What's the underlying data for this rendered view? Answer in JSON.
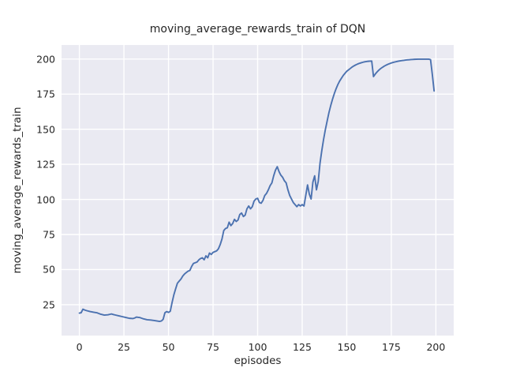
{
  "figure": {
    "background": "#ffffff"
  },
  "chart_data": {
    "type": "line",
    "title": "moving_average_rewards_train of DQN",
    "xlabel": "episodes",
    "ylabel": "moving_average_rewards_train",
    "x_ticks": [
      0,
      25,
      50,
      75,
      100,
      125,
      150,
      175,
      200
    ],
    "y_ticks": [
      25,
      50,
      75,
      100,
      125,
      150,
      175,
      200
    ],
    "xlim": [
      -10,
      210
    ],
    "ylim": [
      3,
      210
    ],
    "grid": true,
    "legend": "none",
    "style": {
      "axes_background": "#eaeaf2",
      "grid_color": "#ffffff",
      "grid_width": 1.4,
      "line_color": "#4c72b0",
      "line_width": 1.9,
      "text_color": "#262626"
    },
    "series": [
      {
        "name": "moving_average_rewards_train",
        "points": [
          [
            0,
            19.0
          ],
          [
            1,
            19.3
          ],
          [
            2,
            21.8
          ],
          [
            3,
            21.2
          ],
          [
            4,
            20.8
          ],
          [
            6,
            20.1
          ],
          [
            8,
            19.6
          ],
          [
            10,
            19.2
          ],
          [
            12,
            18.2
          ],
          [
            14,
            17.6
          ],
          [
            16,
            17.8
          ],
          [
            18,
            18.4
          ],
          [
            19,
            18.0
          ],
          [
            20,
            17.7
          ],
          [
            22,
            17.1
          ],
          [
            24,
            16.5
          ],
          [
            26,
            15.9
          ],
          [
            28,
            15.3
          ],
          [
            30,
            15.1
          ],
          [
            31,
            15.5
          ],
          [
            32,
            16.2
          ],
          [
            33,
            16.0
          ],
          [
            34,
            15.8
          ],
          [
            36,
            14.9
          ],
          [
            38,
            14.3
          ],
          [
            40,
            14.1
          ],
          [
            42,
            13.7
          ],
          [
            44,
            13.3
          ],
          [
            45,
            13.1
          ],
          [
            46,
            13.4
          ],
          [
            47,
            14.6
          ],
          [
            48,
            19.3
          ],
          [
            49,
            20.1
          ],
          [
            50,
            19.5
          ],
          [
            51,
            20.3
          ],
          [
            52,
            26.5
          ],
          [
            53,
            32.0
          ],
          [
            54,
            36.3
          ],
          [
            55,
            40.3
          ],
          [
            56,
            41.8
          ],
          [
            57,
            43.3
          ],
          [
            58,
            45.4
          ],
          [
            59,
            46.9
          ],
          [
            60,
            47.9
          ],
          [
            61,
            48.9
          ],
          [
            62,
            49.4
          ],
          [
            63,
            52.3
          ],
          [
            64,
            54.4
          ],
          [
            65,
            54.9
          ],
          [
            66,
            55.4
          ],
          [
            67,
            56.9
          ],
          [
            68,
            57.9
          ],
          [
            69,
            58.4
          ],
          [
            70,
            57.0
          ],
          [
            71,
            59.8
          ],
          [
            72,
            58.4
          ],
          [
            73,
            61.8
          ],
          [
            74,
            60.8
          ],
          [
            75,
            62.3
          ],
          [
            76,
            62.8
          ],
          [
            77,
            63.3
          ],
          [
            78,
            64.8
          ],
          [
            79,
            67.8
          ],
          [
            80,
            71.8
          ],
          [
            81,
            77.8
          ],
          [
            82,
            79.3
          ],
          [
            83,
            79.8
          ],
          [
            84,
            83.8
          ],
          [
            85,
            81.3
          ],
          [
            86,
            82.8
          ],
          [
            87,
            85.8
          ],
          [
            88,
            84.3
          ],
          [
            89,
            85.3
          ],
          [
            90,
            89.3
          ],
          [
            91,
            90.3
          ],
          [
            92,
            87.8
          ],
          [
            93,
            88.8
          ],
          [
            94,
            93.3
          ],
          [
            95,
            95.3
          ],
          [
            96,
            93.3
          ],
          [
            97,
            94.8
          ],
          [
            98,
            98.8
          ],
          [
            99,
            100.3
          ],
          [
            100,
            100.8
          ],
          [
            101,
            97.8
          ],
          [
            102,
            97.3
          ],
          [
            103,
            99.3
          ],
          [
            104,
            102.8
          ],
          [
            105,
            104.3
          ],
          [
            106,
            106.8
          ],
          [
            107,
            109.8
          ],
          [
            108,
            111.8
          ],
          [
            109,
            116.8
          ],
          [
            110,
            120.8
          ],
          [
            111,
            123.3
          ],
          [
            112,
            119.8
          ],
          [
            113,
            117.3
          ],
          [
            114,
            115.8
          ],
          [
            115,
            113.3
          ],
          [
            116,
            111.8
          ],
          [
            117,
            106.8
          ],
          [
            118,
            102.8
          ],
          [
            119,
            100.3
          ],
          [
            120,
            97.8
          ],
          [
            121,
            96.3
          ],
          [
            122,
            94.8
          ],
          [
            123,
            96.3
          ],
          [
            124,
            95.3
          ],
          [
            125,
            96.3
          ],
          [
            126,
            95.3
          ],
          [
            127,
            102.8
          ],
          [
            128,
            110.3
          ],
          [
            129,
            103.8
          ],
          [
            130,
            100.3
          ],
          [
            131,
            112.3
          ],
          [
            132,
            116.8
          ],
          [
            133,
            106.8
          ],
          [
            134,
            112.8
          ],
          [
            135,
            125.8
          ],
          [
            136,
            134.8
          ],
          [
            137,
            142.8
          ],
          [
            138,
            149.8
          ],
          [
            139,
            155.8
          ],
          [
            140,
            161.8
          ],
          [
            141,
            166.8
          ],
          [
            142,
            171.3
          ],
          [
            143,
            175.3
          ],
          [
            144,
            178.8
          ],
          [
            145,
            181.8
          ],
          [
            146,
            184.3
          ],
          [
            147,
            186.3
          ],
          [
            148,
            188.3
          ],
          [
            149,
            189.8
          ],
          [
            150,
            191.3
          ],
          [
            151,
            192.3
          ],
          [
            152,
            193.3
          ],
          [
            153,
            194.3
          ],
          [
            154,
            195.1
          ],
          [
            155,
            195.8
          ],
          [
            156,
            196.4
          ],
          [
            157,
            196.9
          ],
          [
            158,
            197.3
          ],
          [
            159,
            197.7
          ],
          [
            160,
            198.0
          ],
          [
            161,
            198.2
          ],
          [
            162,
            198.4
          ],
          [
            163,
            198.5
          ],
          [
            164,
            198.6
          ],
          [
            165,
            187.5
          ],
          [
            166,
            189.3
          ],
          [
            167,
            190.8
          ],
          [
            168,
            192.1
          ],
          [
            169,
            193.2
          ],
          [
            170,
            194.1
          ],
          [
            171,
            194.9
          ],
          [
            172,
            195.6
          ],
          [
            173,
            196.2
          ],
          [
            174,
            196.7
          ],
          [
            175,
            197.2
          ],
          [
            176,
            197.6
          ],
          [
            177,
            197.9
          ],
          [
            178,
            198.2
          ],
          [
            179,
            198.5
          ],
          [
            180,
            198.7
          ],
          [
            181,
            198.9
          ],
          [
            182,
            199.1
          ],
          [
            183,
            199.3
          ],
          [
            184,
            199.4
          ],
          [
            185,
            199.5
          ],
          [
            186,
            199.6
          ],
          [
            187,
            199.7
          ],
          [
            188,
            199.8
          ],
          [
            190,
            199.9
          ],
          [
            192,
            199.9
          ],
          [
            194,
            199.9
          ],
          [
            196,
            199.9
          ],
          [
            197,
            199.6
          ],
          [
            198,
            189.0
          ],
          [
            199,
            177.3
          ]
        ]
      }
    ]
  }
}
